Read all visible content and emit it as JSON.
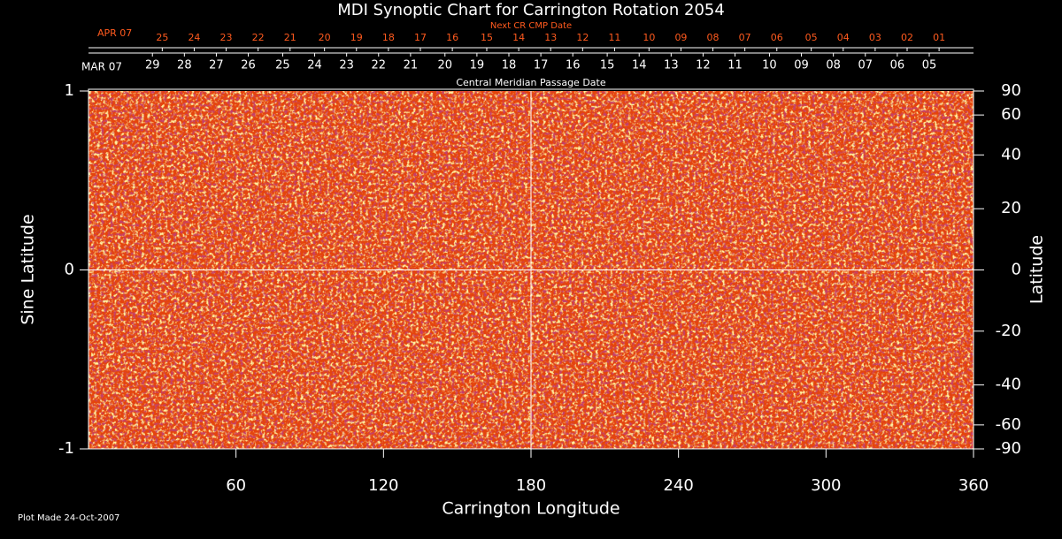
{
  "chart_data": {
    "type": "synoptic-map",
    "title": "MDI Synoptic Chart for Carrington Rotation 2054",
    "xlabel": "Carrington Longitude",
    "ylabel": "Sine Latitude",
    "y2label": "Latitude",
    "xlim": [
      0,
      360
    ],
    "xticks": [
      60,
      120,
      180,
      240,
      300,
      360
    ],
    "ylim": [
      -1,
      1
    ],
    "yticks": [
      -1,
      0,
      1
    ],
    "y2lim": [
      -90,
      90
    ],
    "y2ticks": [
      90,
      60,
      40,
      20,
      0,
      -20,
      -40,
      -60,
      -90
    ],
    "guide_lines": {
      "x": 180,
      "y": 0
    },
    "cmp_axis": {
      "label": "Central Meridian Passage Date",
      "month": "MAR 07",
      "dates": [
        "29",
        "28",
        "27",
        "26",
        "25",
        "24",
        "23",
        "22",
        "21",
        "20",
        "19",
        "18",
        "17",
        "16",
        "15",
        "14",
        "13",
        "12",
        "11",
        "10",
        "09",
        "08",
        "07",
        "06",
        "05"
      ],
      "x": [
        26,
        39,
        52,
        65,
        79,
        92,
        105,
        118,
        131,
        145,
        158,
        171,
        184,
        197,
        211,
        224,
        237,
        250,
        263,
        277,
        290,
        303,
        316,
        329,
        342
      ]
    },
    "next_cmp_axis": {
      "label": "Next CR CMP Date",
      "month": "APR 07",
      "color": "#ff5a1e",
      "dates": [
        "25",
        "24",
        "23",
        "22",
        "21",
        "20",
        "19",
        "18",
        "17",
        "16",
        "15",
        "14",
        "13",
        "12",
        "11",
        "10",
        "09",
        "08",
        "07",
        "06",
        "05",
        "04",
        "03",
        "02",
        "01"
      ],
      "x": [
        30,
        43,
        56,
        69,
        82,
        96,
        109,
        122,
        135,
        148,
        162,
        175,
        188,
        201,
        214,
        228,
        241,
        254,
        267,
        280,
        294,
        307,
        320,
        333,
        346
      ]
    },
    "footer": "Plot Made 24-Oct-2007"
  }
}
